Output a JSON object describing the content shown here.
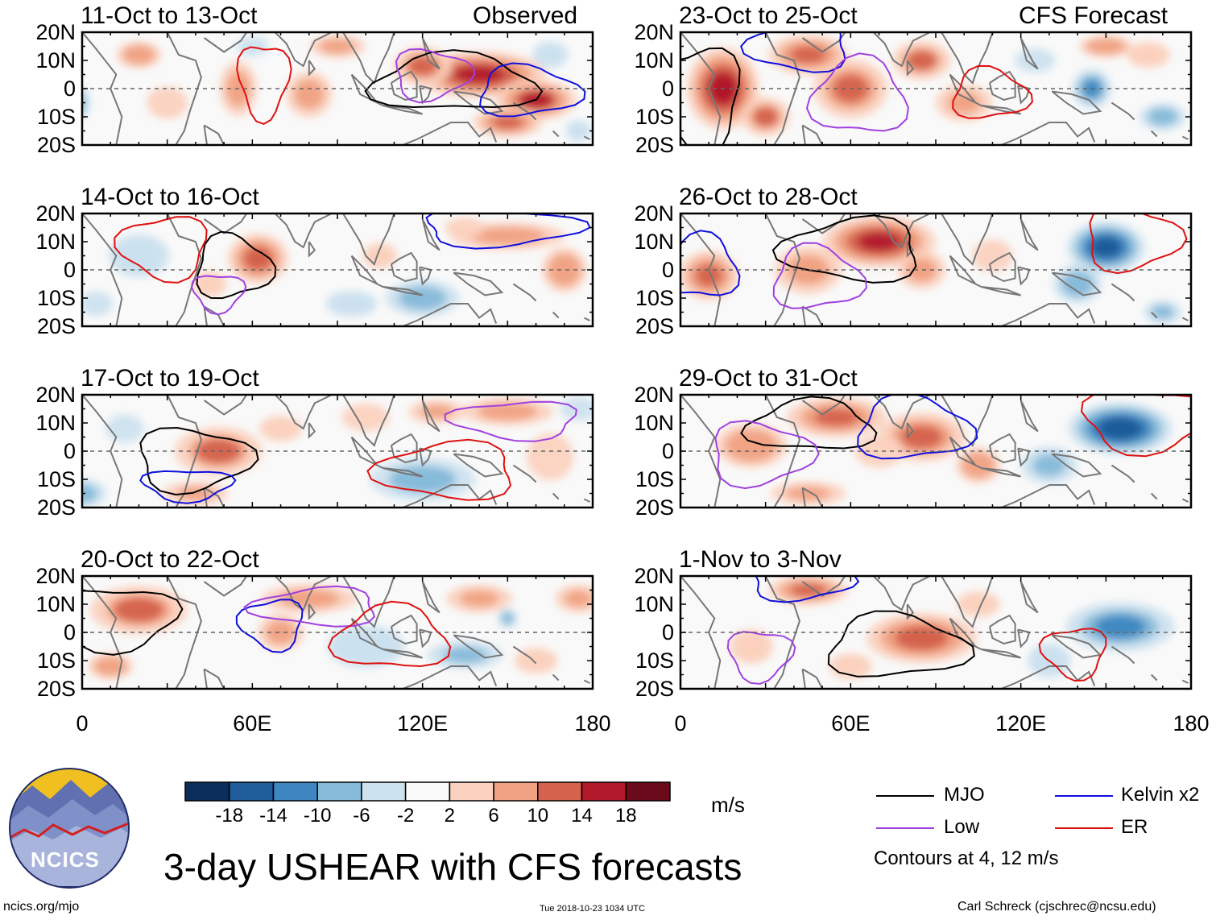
{
  "chart_data": {
    "type": "heatmap",
    "title": "3-day USHEAR with CFS forecasts",
    "units": "m/s",
    "observed_label": "Observed",
    "forecast_label": "CFS Forecast",
    "x_axis": {
      "range": [
        0,
        180
      ],
      "ticks": [
        0,
        60,
        120,
        180
      ],
      "tick_labels": [
        "0",
        "60E",
        "120E",
        "180"
      ]
    },
    "y_axis": {
      "range": [
        -20,
        20
      ],
      "ticks": [
        20,
        10,
        0,
        -10,
        -20
      ],
      "tick_labels": [
        "20N",
        "10N",
        "0",
        "10S",
        "20S"
      ]
    },
    "colorbar": {
      "levels": [
        -18,
        -14,
        -10,
        -6,
        -2,
        2,
        6,
        10,
        14,
        18
      ],
      "labels": [
        "-18",
        "-14",
        "-10",
        "-6",
        "-2",
        "2",
        "6",
        "10",
        "14",
        "18"
      ],
      "colors": [
        "#0b2e5c",
        "#1f5c9a",
        "#3d86c1",
        "#86bad9",
        "#cce2ef",
        "#f9f9f9",
        "#fbd2bf",
        "#f0a283",
        "#d4624c",
        "#b2192b",
        "#6b0a1b"
      ]
    },
    "contours": {
      "levels_note": "Contours at 4, 12 m/s",
      "legend": [
        {
          "name": "MJO",
          "color": "#000000"
        },
        {
          "name": "Kelvin x2",
          "color": "#1010dd"
        },
        {
          "name": "Low",
          "color": "#a040e0"
        },
        {
          "name": "ER",
          "color": "#e01010"
        }
      ]
    },
    "panels": [
      {
        "id": "obs1",
        "title": "11-Oct to 13-Oct",
        "kind": "observed",
        "blobs": [
          [
            140,
            5,
            26,
            9,
            16
          ],
          [
            160,
            -4,
            16,
            8,
            14
          ],
          [
            120,
            8,
            12,
            8,
            10
          ],
          [
            150,
            -12,
            14,
            6,
            12
          ],
          [
            55,
            0,
            8,
            12,
            7
          ],
          [
            80,
            -2,
            10,
            10,
            7
          ],
          [
            20,
            12,
            10,
            6,
            6
          ],
          [
            90,
            15,
            12,
            5,
            7
          ],
          [
            -2,
            -5,
            6,
            8,
            -7
          ],
          [
            165,
            12,
            8,
            6,
            -6
          ],
          [
            175,
            -15,
            6,
            5,
            -5
          ],
          [
            60,
            15,
            8,
            5,
            -4
          ],
          [
            30,
            -5,
            10,
            8,
            4
          ]
        ]
      },
      {
        "id": "obs2",
        "title": "14-Oct to 16-Oct",
        "kind": "observed",
        "blobs": [
          [
            62,
            4,
            12,
            10,
            13
          ],
          [
            150,
            12,
            25,
            6,
            7
          ],
          [
            45,
            -5,
            8,
            6,
            5
          ],
          [
            105,
            5,
            8,
            6,
            5
          ],
          [
            20,
            5,
            14,
            10,
            -5
          ],
          [
            120,
            -10,
            16,
            8,
            -7
          ],
          [
            95,
            -12,
            12,
            6,
            -5
          ],
          [
            170,
            0,
            10,
            10,
            6
          ],
          [
            5,
            -12,
            8,
            6,
            -4
          ],
          [
            135,
            15,
            10,
            5,
            4
          ]
        ]
      },
      {
        "id": "obs3",
        "title": "17-Oct to 19-Oct",
        "kind": "observed",
        "blobs": [
          [
            48,
            0,
            18,
            10,
            10
          ],
          [
            40,
            -15,
            14,
            5,
            8
          ],
          [
            150,
            14,
            20,
            6,
            7
          ],
          [
            125,
            14,
            12,
            5,
            8
          ],
          [
            120,
            -10,
            22,
            9,
            -9
          ],
          [
            0,
            -15,
            10,
            6,
            -9
          ],
          [
            165,
            -2,
            10,
            10,
            3
          ],
          [
            100,
            12,
            10,
            6,
            3
          ],
          [
            70,
            8,
            10,
            6,
            5
          ],
          [
            175,
            15,
            8,
            5,
            -3
          ],
          [
            15,
            8,
            8,
            6,
            -3
          ]
        ]
      },
      {
        "id": "obs4",
        "title": "20-Oct to 22-Oct",
        "kind": "observed",
        "blobs": [
          [
            20,
            8,
            20,
            10,
            10
          ],
          [
            70,
            0,
            10,
            8,
            7
          ],
          [
            80,
            12,
            20,
            6,
            9
          ],
          [
            140,
            12,
            14,
            6,
            8
          ],
          [
            100,
            -5,
            18,
            10,
            -5
          ],
          [
            135,
            -8,
            16,
            6,
            -8
          ],
          [
            150,
            5,
            4,
            4,
            -10
          ],
          [
            175,
            12,
            10,
            6,
            8
          ],
          [
            10,
            -12,
            10,
            6,
            6
          ],
          [
            160,
            -10,
            10,
            6,
            5
          ]
        ]
      },
      {
        "id": "fc1",
        "title": "23-Oct to 25-Oct",
        "kind": "forecast",
        "blobs": [
          [
            15,
            0,
            14,
            16,
            17
          ],
          [
            45,
            12,
            16,
            8,
            12
          ],
          [
            60,
            0,
            15,
            12,
            11
          ],
          [
            85,
            10,
            12,
            8,
            10
          ],
          [
            100,
            -5,
            12,
            8,
            8
          ],
          [
            30,
            -10,
            10,
            8,
            10
          ],
          [
            145,
            0,
            8,
            8,
            -11
          ],
          [
            170,
            -10,
            10,
            6,
            -7
          ],
          [
            165,
            12,
            10,
            6,
            5
          ],
          [
            125,
            10,
            10,
            6,
            -4
          ],
          [
            150,
            15,
            12,
            5,
            6
          ]
        ]
      },
      {
        "id": "fc2",
        "title": "26-Oct to 28-Oct",
        "kind": "forecast",
        "blobs": [
          [
            70,
            10,
            22,
            10,
            16
          ],
          [
            10,
            -2,
            12,
            10,
            12
          ],
          [
            45,
            0,
            14,
            10,
            9
          ],
          [
            85,
            0,
            10,
            8,
            9
          ],
          [
            150,
            8,
            15,
            10,
            -17
          ],
          [
            140,
            -5,
            10,
            8,
            -10
          ],
          [
            170,
            -15,
            8,
            5,
            -8
          ],
          [
            110,
            5,
            10,
            8,
            4
          ]
        ]
      },
      {
        "id": "fc3",
        "title": "29-Oct to 31-Oct",
        "kind": "forecast",
        "blobs": [
          [
            55,
            12,
            20,
            8,
            12
          ],
          [
            85,
            5,
            18,
            10,
            11
          ],
          [
            25,
            2,
            16,
            10,
            6
          ],
          [
            45,
            -15,
            16,
            5,
            8
          ],
          [
            155,
            8,
            20,
            10,
            -18
          ],
          [
            130,
            -5,
            12,
            8,
            -8
          ],
          [
            105,
            -5,
            10,
            8,
            6
          ],
          [
            70,
            0,
            12,
            8,
            4
          ]
        ]
      },
      {
        "id": "fc4",
        "title": "1-Nov to 3-Nov",
        "kind": "forecast",
        "blobs": [
          [
            85,
            -2,
            22,
            10,
            13
          ],
          [
            45,
            15,
            16,
            6,
            12
          ],
          [
            25,
            -5,
            10,
            8,
            5
          ],
          [
            155,
            2,
            22,
            10,
            -11
          ],
          [
            130,
            -10,
            10,
            8,
            -5
          ],
          [
            105,
            10,
            10,
            6,
            5
          ],
          [
            60,
            -12,
            10,
            6,
            5
          ]
        ]
      }
    ]
  },
  "footer": {
    "logo_text": "NCICS",
    "url": "ncics.org/mjo",
    "timestamp": "Tue 2018-10-23 1034 UTC",
    "credit": "Carl Schreck (cjschrec@ncsu.edu)"
  },
  "colors": {
    "land": "#777777",
    "equator": "#666666",
    "logo_circle": "#1e2a66",
    "logo_sky": "#f0c020"
  }
}
